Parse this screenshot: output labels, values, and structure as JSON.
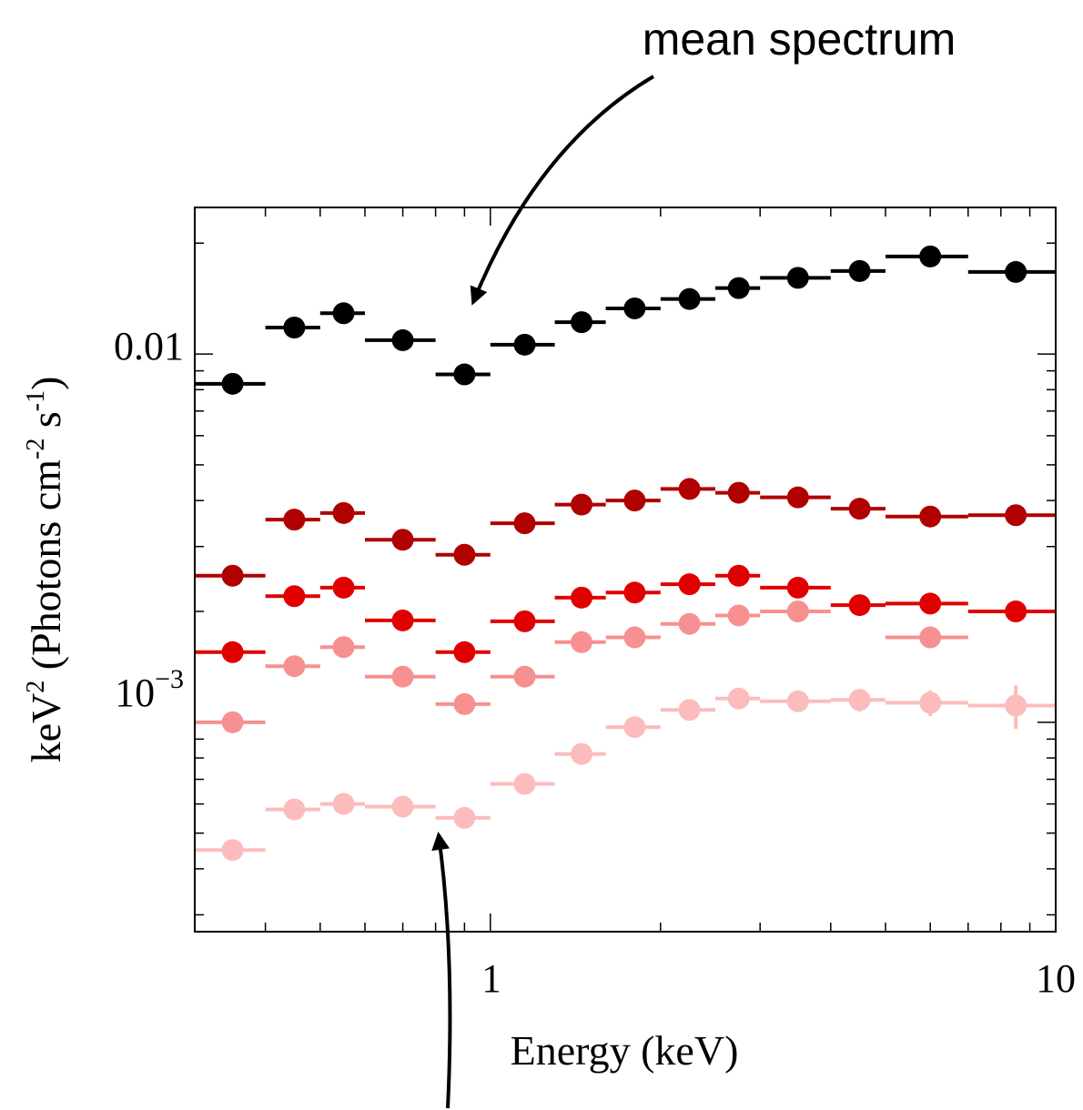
{
  "chart_data": {
    "type": "scatter",
    "xscale": "log",
    "yscale": "log",
    "xlim": [
      0.3,
      10
    ],
    "ylim": [
      0.00027,
      0.025
    ],
    "xlabel": "Energy (keV)",
    "ylabel_main": "keV",
    "ylabel_sup": "2",
    "ylabel_rest": " (Photons cm",
    "ylabel_sup2": "-2",
    "ylabel_rest2": " s",
    "ylabel_sup3": "-1",
    "ylabel_end": ")",
    "xticks": [
      {
        "value": 1,
        "label": "1"
      },
      {
        "value": 10,
        "label": "10"
      }
    ],
    "yticks": [
      {
        "value": 0.01,
        "label": "0.01"
      },
      {
        "value": 0.001,
        "label_base": "10",
        "label_exp": "−3"
      }
    ],
    "bins": [
      {
        "x": 0.35,
        "lo": 0.3,
        "hi": 0.4
      },
      {
        "x": 0.45,
        "lo": 0.4,
        "hi": 0.5
      },
      {
        "x": 0.55,
        "lo": 0.5,
        "hi": 0.6
      },
      {
        "x": 0.7,
        "lo": 0.6,
        "hi": 0.8
      },
      {
        "x": 0.9,
        "lo": 0.8,
        "hi": 1.0
      },
      {
        "x": 1.15,
        "lo": 1.0,
        "hi": 1.3
      },
      {
        "x": 1.45,
        "lo": 1.3,
        "hi": 1.6
      },
      {
        "x": 1.8,
        "lo": 1.6,
        "hi": 2.0
      },
      {
        "x": 2.25,
        "lo": 2.0,
        "hi": 2.5
      },
      {
        "x": 2.75,
        "lo": 2.5,
        "hi": 3.0
      },
      {
        "x": 3.5,
        "lo": 3.0,
        "hi": 4.0
      },
      {
        "x": 4.5,
        "lo": 4.0,
        "hi": 5.0
      },
      {
        "x": 6.0,
        "lo": 5.0,
        "hi": 7.0
      },
      {
        "x": 8.5,
        "lo": 7.0,
        "hi": 10.0
      }
    ],
    "series": [
      {
        "color": "#000000",
        "values": [
          0.0083,
          0.0118,
          0.0129,
          0.0109,
          0.0088,
          0.0106,
          0.0122,
          0.0133,
          0.0141,
          0.0151,
          0.0161,
          0.0168,
          0.0184,
          0.0167
        ],
        "err": [
          0,
          0,
          0,
          0,
          0,
          0,
          0,
          0,
          0,
          0,
          0,
          0,
          0,
          0
        ]
      },
      {
        "color": "#b00000",
        "values": [
          0.0025,
          0.00355,
          0.0037,
          0.00313,
          0.00285,
          0.00347,
          0.0039,
          0.004,
          0.0043,
          0.0042,
          0.00408,
          0.0038,
          0.00362,
          0.00365
        ],
        "err": [
          0,
          0,
          0,
          0,
          0,
          0,
          0,
          0,
          0,
          0,
          0,
          0,
          0,
          0
        ]
      },
      {
        "color": "#e00000",
        "values": [
          0.00155,
          0.0022,
          0.00232,
          0.00189,
          0.00155,
          0.00188,
          0.00218,
          0.00225,
          0.00237,
          0.0025,
          0.00232,
          0.00208,
          0.0021,
          0.002
        ],
        "err": [
          0,
          0,
          0,
          0,
          0,
          0,
          0,
          0,
          0,
          0,
          0,
          0,
          0,
          0
        ]
      },
      {
        "color": "#f79090",
        "values": [
          0.001,
          0.00142,
          0.0016,
          0.00133,
          0.00112,
          0.00133,
          0.00165,
          0.0017,
          0.00185,
          0.00195,
          0.002,
          0,
          0.0017,
          0
        ],
        "err": [
          0,
          0,
          0,
          0,
          0,
          0,
          0,
          0,
          0,
          0,
          0,
          0,
          0,
          0
        ]
      },
      {
        "color": "#fcbcbc",
        "values": [
          0.00045,
          0.00058,
          0.0006,
          0.00059,
          0.00055,
          0.00068,
          0.00082,
          0.00097,
          0.00108,
          0.00116,
          0.00114,
          0.00115,
          0.00113,
          0.00111
        ],
        "err": [
          0,
          0,
          0,
          0,
          0,
          0,
          0,
          0,
          0,
          0,
          0,
          8e-05,
          9e-05,
          0.00015
        ]
      }
    ],
    "annotations": [
      {
        "text": "mean spectrum"
      }
    ]
  }
}
